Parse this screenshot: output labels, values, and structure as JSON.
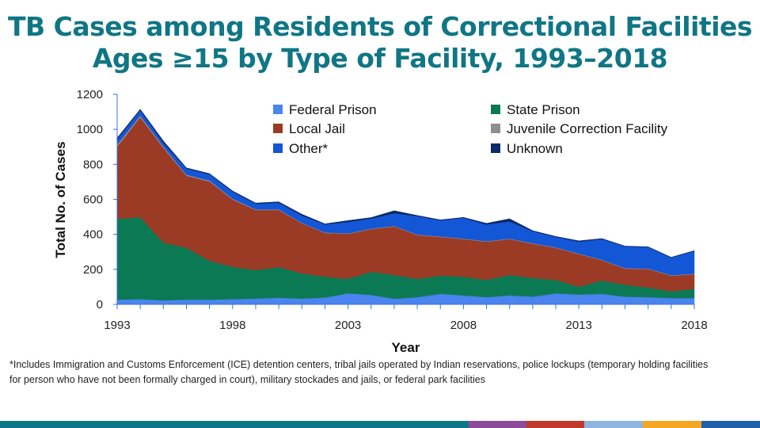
{
  "title_line1": "TB Cases among Residents of Correctional Facilities",
  "title_line2": "Ages ≥15 by Type of Facility, 1993–2018",
  "footnote": "*Includes Immigration and Customs Enforcement (ICE) detention centers, tribal jails operated by Indian reservations, police lockups (temporary holding facilities for person who have not been formally charged in court), military stockades and jails, or federal park facilities",
  "chart_data": {
    "type": "area",
    "stacked": true,
    "xlabel": "Year",
    "ylabel": "Total No. of Cases",
    "ylim": [
      0,
      1200
    ],
    "yticks": [
      0,
      200,
      400,
      600,
      800,
      1000,
      1200
    ],
    "xtick_labels": [
      1993,
      1998,
      2003,
      2008,
      2013,
      2018
    ],
    "legend_position": "top-right",
    "x": [
      1993,
      1994,
      1995,
      1996,
      1997,
      1998,
      1999,
      2000,
      2001,
      2002,
      2003,
      2004,
      2005,
      2006,
      2007,
      2008,
      2009,
      2010,
      2011,
      2012,
      2013,
      2014,
      2015,
      2016,
      2017,
      2018
    ],
    "series": [
      {
        "name": "Federal Prison",
        "color": "#4a84ee",
        "values": [
          27,
          30,
          23,
          27,
          27,
          30,
          33,
          38,
          33,
          39,
          63,
          54,
          32,
          41,
          60,
          51,
          41,
          51,
          44,
          63,
          56,
          60,
          44,
          41,
          36,
          36
        ]
      },
      {
        "name": "State Prison",
        "color": "#0b7a54",
        "values": [
          462,
          468,
          330,
          296,
          222,
          184,
          163,
          175,
          144,
          119,
          83,
          132,
          136,
          105,
          104,
          107,
          99,
          117,
          107,
          77,
          45,
          76,
          68,
          55,
          39,
          53
        ]
      },
      {
        "name": "Local Jail",
        "color": "#9b3a25",
        "values": [
          412,
          571,
          541,
          412,
          453,
          385,
          343,
          326,
          286,
          250,
          257,
          244,
          277,
          250,
          221,
          215,
          218,
          205,
          195,
          183,
          186,
          116,
          92,
          106,
          89,
          83
        ]
      },
      {
        "name": "Juvenile Correction Facility",
        "color": "#8e8e8e",
        "values": [
          12,
          10,
          8,
          6,
          6,
          5,
          4,
          4,
          3,
          3,
          3,
          3,
          3,
          3,
          3,
          3,
          3,
          3,
          3,
          3,
          3,
          3,
          3,
          3,
          3,
          3
        ]
      },
      {
        "name": "Other*",
        "color": "#1356d6",
        "values": [
          30,
          31,
          22,
          35,
          35,
          40,
          32,
          38,
          42,
          46,
          65,
          57,
          73,
          105,
          92,
          118,
          95,
          98,
          69,
          59,
          68,
          118,
          124,
          122,
          100,
          130
        ]
      },
      {
        "name": "Unknown",
        "color": "#0b2a66",
        "values": [
          8,
          5,
          10,
          4,
          4,
          4,
          4,
          5,
          7,
          3,
          8,
          6,
          14,
          4,
          3,
          3,
          7,
          15,
          3,
          3,
          5,
          3,
          2,
          2,
          2,
          2
        ]
      }
    ]
  },
  "bottom_bar_colors": [
    "#0e7785",
    "#8c4a9b",
    "#c0392b",
    "#8db5e0",
    "#f5a623",
    "#1f5fa8"
  ]
}
